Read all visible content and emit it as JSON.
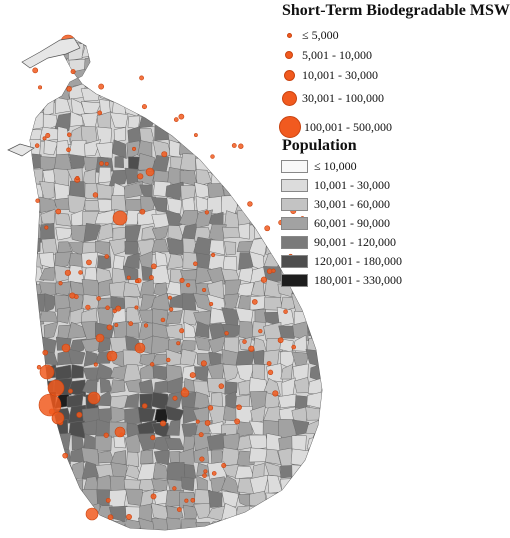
{
  "legend_msw": {
    "title": "Short-Term Biodegradable MSW",
    "color": "#f15a1f",
    "classes": [
      "≤ 5,000",
      "5,001 - 10,000",
      "10,001 - 30,000",
      "30,001 - 100,000",
      "100,001 - 500,000"
    ]
  },
  "legend_population": {
    "title": "Population",
    "classes": [
      {
        "label": "≤ 10,000",
        "color": "#f8f8f8"
      },
      {
        "label": "10,001 - 30,000",
        "color": "#dcdcdc"
      },
      {
        "label": "30,001 - 60,000",
        "color": "#c3c3c3"
      },
      {
        "label": "60,001 - 90,000",
        "color": "#a2a2a2"
      },
      {
        "label": "90,001 - 120,000",
        "color": "#7a7a7a"
      },
      {
        "label": "120,001 - 180,000",
        "color": "#4e4e4e"
      },
      {
        "label": "180,001 - 330,000",
        "color": "#1e1e1e"
      }
    ]
  }
}
